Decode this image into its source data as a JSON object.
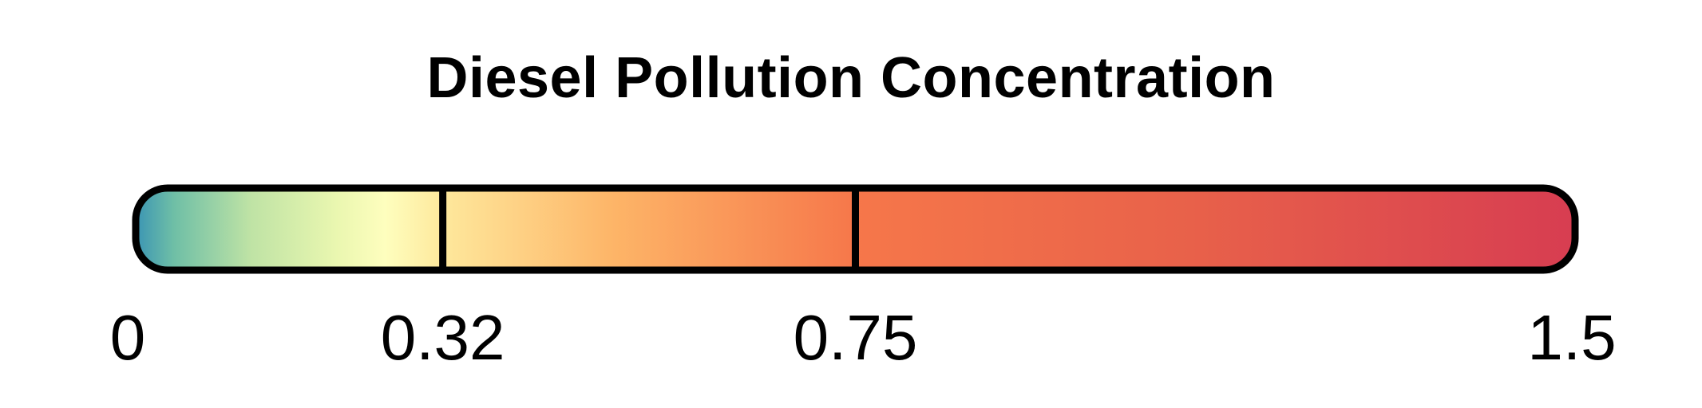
{
  "chart_data": {
    "type": "colorbar",
    "title": "Diesel Pollution Concentration",
    "range": [
      0,
      1.5
    ],
    "ticks": [
      0,
      0.32,
      0.75,
      1.5
    ],
    "tick_labels": [
      "0",
      "0.32",
      "0.75",
      "1.5"
    ],
    "breaks": [
      0.32,
      0.75
    ],
    "color_stops": [
      {
        "value": 0.0,
        "color": "#3b95b4"
      },
      {
        "value": 0.04,
        "color": "#6fbfa6"
      },
      {
        "value": 0.12,
        "color": "#bfe3a5"
      },
      {
        "value": 0.21,
        "color": "#eaf7b0"
      },
      {
        "value": 0.26,
        "color": "#fefebe"
      },
      {
        "value": 0.32,
        "color": "#fee89c"
      },
      {
        "value": 0.5,
        "color": "#fdb467"
      },
      {
        "value": 0.75,
        "color": "#f6774a"
      },
      {
        "value": 1.1,
        "color": "#e8614a"
      },
      {
        "value": 1.5,
        "color": "#d73d51"
      }
    ],
    "outline_color": "#000000"
  }
}
